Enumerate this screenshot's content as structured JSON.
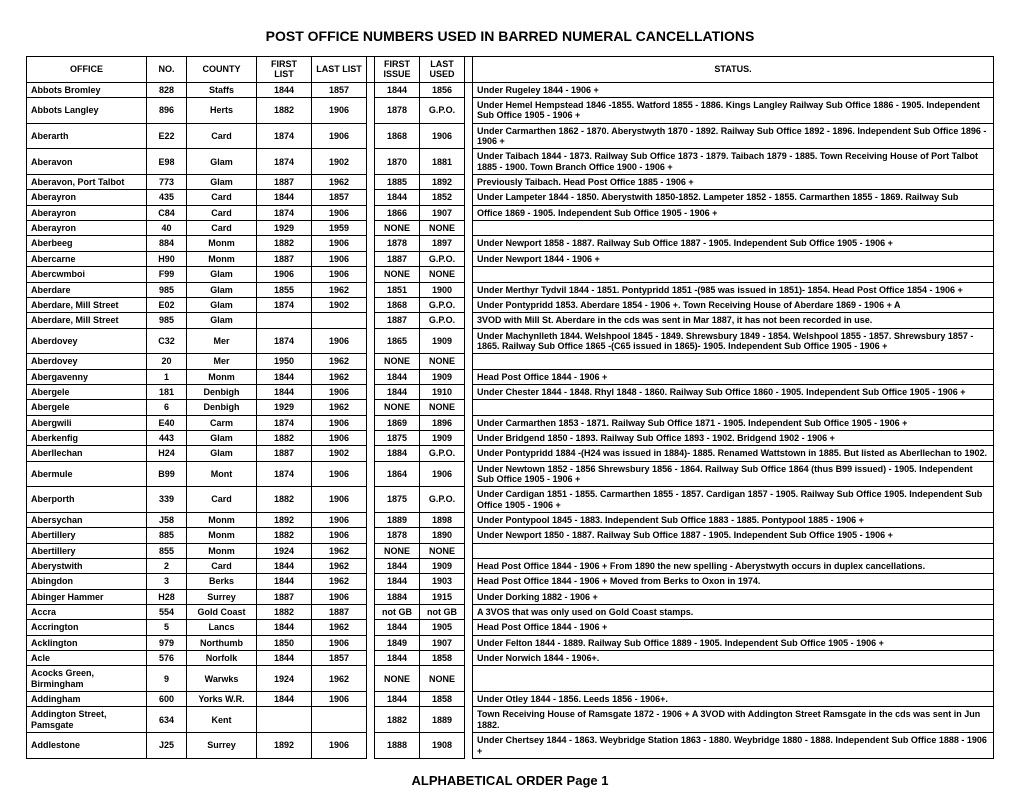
{
  "title": "POST OFFICE NUMBERS USED IN BARRED NUMERAL CANCELLATIONS",
  "footer": "ALPHABETICAL ORDER  Page 1",
  "columns": [
    "OFFICE",
    "NO.",
    "COUNTY",
    "FIRST LIST",
    "LAST LIST",
    "",
    "FIRST ISSUE",
    "LAST USED",
    "",
    "STATUS."
  ],
  "rows": [
    {
      "office": "Abbots Bromley",
      "no": "828",
      "county": "Staffs",
      "fl": "1844",
      "ll": "1857",
      "fi": "1844",
      "lu": "1856",
      "status": "Under Rugeley 1844 - 1906 +"
    },
    {
      "office": "Abbots Langley",
      "no": "896",
      "county": "Herts",
      "fl": "1882",
      "ll": "1906",
      "fi": "1878",
      "lu": "G.P.O.",
      "status": "Under Hemel Hempstead 1846 -1855.  Watford 1855 - 1886. Kings Langley Railway Sub Office 1886 - 1905.  Independent Sub Office 1905 - 1906 +"
    },
    {
      "office": "Aberarth",
      "no": "E22",
      "county": "Card",
      "fl": "1874",
      "ll": "1906",
      "fi": "1868",
      "lu": "1906",
      "status": "Under Carmarthen 1862 - 1870. Aberystwyth 1870 - 1892.  Railway Sub Office  1892 - 1896. Independent Sub Office 1896 - 1906 +"
    },
    {
      "office": "Aberavon",
      "no": "E98",
      "county": "Glam",
      "fl": "1874",
      "ll": "1902",
      "fi": "1870",
      "lu": "1881",
      "status": "Under Taibach 1844 - 1873. Railway Sub Office 1873 - 1879. Taibach 1879 - 1885. Town Receiving House of Port Talbot 1885 - 1900. Town Branch Office 1900 - 1906 +"
    },
    {
      "office": "Aberavon, Port Talbot",
      "no": "773",
      "county": "Glam",
      "fl": "1887",
      "ll": "1962",
      "fi": "1885",
      "lu": "1892",
      "status": "Previously Taibach. Head Post Office 1885 - 1906 +"
    },
    {
      "office": "Aberayron",
      "no": "435",
      "county": "Card",
      "fl": "1844",
      "ll": "1857",
      "fi": "1844",
      "lu": "1852",
      "status": "Under Lampeter 1844 - 1850. Aberystwith 1850-1852. Lampeter 1852 - 1855. Carmarthen 1855 - 1869. Railway Sub"
    },
    {
      "office": "Aberayron",
      "no": "C84",
      "county": "Card",
      "fl": "1874",
      "ll": "1906",
      "fi": "1866",
      "lu": "1907",
      "status": "Office 1869 - 1905. Independent Sub Office 1905 - 1906 +"
    },
    {
      "office": "Aberayron",
      "no": "40",
      "county": "Card",
      "fl": "1929",
      "ll": "1959",
      "fi": "NONE",
      "lu": "NONE",
      "status": ""
    },
    {
      "office": "Aberbeeg",
      "no": "884",
      "county": "Monm",
      "fl": "1882",
      "ll": "1906",
      "fi": "1878",
      "lu": "1897",
      "status": "Under Newport 1858 - 1887.  Railway Sub Office 1887 - 1905.  Independent Sub Office 1905 - 1906 +"
    },
    {
      "office": "Abercarne",
      "no": "H90",
      "county": "Monm",
      "fl": "1887",
      "ll": "1906",
      "fi": "1887",
      "lu": "G.P.O.",
      "status": "Under Newport 1844 - 1906 +"
    },
    {
      "office": "Abercwmboi",
      "no": "F99",
      "county": "Glam",
      "fl": "1906",
      "ll": "1906",
      "fi": "NONE",
      "lu": "NONE",
      "status": ""
    },
    {
      "office": "Aberdare",
      "no": "985",
      "county": "Glam",
      "fl": "1855",
      "ll": "1962",
      "fi": "1851",
      "lu": "1900",
      "status": "Under Merthyr Tydvil 1844 - 1851. Pontypridd 1851 -(985 was issued in 1851)- 1854. Head Post Office 1854 - 1906 +"
    },
    {
      "office": "Aberdare, Mill Street",
      "no": "E02",
      "county": "Glam",
      "fl": "1874",
      "ll": "1902",
      "fi": "1868",
      "lu": "G.P.O.",
      "status": "Under Pontypridd 1853. Aberdare 1854 - 1906 +. Town Receiving House of Aberdare 1869 - 1906 +                          A"
    },
    {
      "office": "Aberdare, Mill Street",
      "no": "985",
      "county": "Glam",
      "fl": "",
      "ll": "",
      "fi": "1887",
      "lu": "G.P.O.",
      "status": "3VOD with Mill St. Aberdare in the cds was sent in Mar 1887, it has not been recorded in use."
    },
    {
      "office": "Aberdovey",
      "no": "C32",
      "county": "Mer",
      "fl": "1874",
      "ll": "1906",
      "fi": "1865",
      "lu": "1909",
      "status": "Under Machynlleth 1844. Welshpool 1845 - 1849. Shrewsbury 1849 - 1854. Welshpool 1855 - 1857. Shrewsbury 1857 - 1865.  Railway Sub Office  1865 -(C65 issued in 1865)- 1905. Independent Sub Office 1905 - 1906 +"
    },
    {
      "office": "Aberdovey",
      "no": "20",
      "county": "Mer",
      "fl": "1950",
      "ll": "1962",
      "fi": "NONE",
      "lu": "NONE",
      "status": ""
    },
    {
      "office": "Abergavenny",
      "no": "1",
      "county": "Monm",
      "fl": "1844",
      "ll": "1962",
      "fi": "1844",
      "lu": "1909",
      "status": "Head Post Office 1844 - 1906 +"
    },
    {
      "office": "Abergele",
      "no": "181",
      "county": "Denbigh",
      "fl": "1844",
      "ll": "1906",
      "fi": "1844",
      "lu": "1910",
      "status": "Under Chester 1844 - 1848. Rhyl 1848 - 1860. Railway Sub Office 1860 - 1905. Independent Sub Office  1905 - 1906 +"
    },
    {
      "office": "Abergele",
      "no": "6",
      "county": "Denbigh",
      "fl": "1929",
      "ll": "1962",
      "fi": "NONE",
      "lu": "NONE",
      "status": ""
    },
    {
      "office": "Abergwili",
      "no": "E40",
      "county": "Carm",
      "fl": "1874",
      "ll": "1906",
      "fi": "1869",
      "lu": "1896",
      "status": "Under Carmarthen 1853 - 1871.  Railway Sub Office 1871 - 1905. Independent Sub Office  1905 - 1906 +"
    },
    {
      "office": "Aberkenfig",
      "no": "443",
      "county": "Glam",
      "fl": "1882",
      "ll": "1906",
      "fi": "1875",
      "lu": "1909",
      "status": "Under Bridgend 1850 - 1893. Railway Sub Office 1893 - 1902. Bridgend 1902 - 1906 +"
    },
    {
      "office": "Aberllechan",
      "no": "H24",
      "county": "Glam",
      "fl": "1887",
      "ll": "1902",
      "fi": "1884",
      "lu": "G.P.O.",
      "status": "Under Pontypridd 1884 -(H24 was issued in 1884)- 1885. Renamed  Wattstown in 1885. But listed as Aberllechan to 1902."
    },
    {
      "office": "Abermule",
      "no": "B99",
      "county": "Mont",
      "fl": "1874",
      "ll": "1906",
      "fi": "1864",
      "lu": "1906",
      "status": "Under Newtown 1852 - 1856 Shrewsbury 1856 - 1864. Railway Sub Office 1864 (thus B99 issued) - 1905. Independent Sub Office 1905 - 1906 +"
    },
    {
      "office": "Aberporth",
      "no": "339",
      "county": "Card",
      "fl": "1882",
      "ll": "1906",
      "fi": "1875",
      "lu": "G.P.O.",
      "status": "Under Cardigan 1851 - 1855. Carmarthen 1855 - 1857. Cardigan 1857 - 1905. Railway Sub Office 1905. Independent Sub Office 1905 - 1906 +"
    },
    {
      "office": "Abersychan",
      "no": "J58",
      "county": "Monm",
      "fl": "1892",
      "ll": "1906",
      "fi": "1889",
      "lu": "1898",
      "status": "Under Pontypool 1845 - 1883.  Independent Sub Office 1883 - 1885. Pontypool 1885 - 1906 +"
    },
    {
      "office": "Abertillery",
      "no": "885",
      "county": "Monm",
      "fl": "1882",
      "ll": "1906",
      "fi": "1878",
      "lu": "1890",
      "status": "Under Newport 1850 - 1887.  Railway Sub Office 1887 - 1905.  Independent Sub Office 1905 - 1906 +"
    },
    {
      "office": "Abertillery",
      "no": "855",
      "county": "Monm",
      "fl": "1924",
      "ll": "1962",
      "fi": "NONE",
      "lu": "NONE",
      "status": ""
    },
    {
      "office": "Aberystwith",
      "no": "2",
      "county": "Card",
      "fl": "1844",
      "ll": "1962",
      "fi": "1844",
      "lu": "1909",
      "status": "Head Post Office 1844 - 1906 +       From 1890 the new spelling - Aberystwyth occurs in duplex cancellations."
    },
    {
      "office": "Abingdon",
      "no": "3",
      "county": "Berks",
      "fl": "1844",
      "ll": "1962",
      "fi": "1844",
      "lu": "1903",
      "status": "Head Post Office 1844 - 1906 +   Moved from Berks to Oxon in 1974."
    },
    {
      "office": "Abinger Hammer",
      "no": "H28",
      "county": "Surrey",
      "fl": "1887",
      "ll": "1906",
      "fi": "1884",
      "lu": "1915",
      "status": "Under  Dorking 1882 - 1906 +"
    },
    {
      "office": "Accra",
      "no": "554",
      "county": "Gold Coast",
      "fl": "1882",
      "ll": "1887",
      "fi": "not GB",
      "lu": "not GB",
      "status": "A 3VOS that was only used on Gold Coast stamps."
    },
    {
      "office": "Accrington",
      "no": "5",
      "county": "Lancs",
      "fl": "1844",
      "ll": "1962",
      "fi": "1844",
      "lu": "1905",
      "status": "Head Post Office 1844 - 1906 +"
    },
    {
      "office": "Acklington",
      "no": "979",
      "county": "Northumb",
      "fl": "1850",
      "ll": "1906",
      "fi": "1849",
      "lu": "1907",
      "status": "Under Felton 1844 - 1889. Railway Sub Office 1889 - 1905.   Independent Sub Office 1905 - 1906 +"
    },
    {
      "office": "Acle",
      "no": "576",
      "county": "Norfolk",
      "fl": "1844",
      "ll": "1857",
      "fi": "1844",
      "lu": "1858",
      "status": "Under Norwich 1844 - 1906+."
    },
    {
      "office": "Acocks Green, Birmingham",
      "no": "9",
      "county": "Warwks",
      "fl": "1924",
      "ll": "1962",
      "fi": "NONE",
      "lu": "NONE",
      "status": ""
    },
    {
      "office": "Addingham",
      "no": "600",
      "county": "Yorks W.R.",
      "fl": "1844",
      "ll": "1906",
      "fi": "1844",
      "lu": "1858",
      "status": "Under Otley 1844 - 1856. Leeds 1856 - 1906+."
    },
    {
      "office": "Addington Street, Pamsgate",
      "no": "634",
      "county": "Kent",
      "fl": "",
      "ll": "",
      "fi": "1882",
      "lu": "1889",
      "status": "Town Receiving House of Ramsgate 1872 - 1906 +        A 3VOD with Addington Street Ramsgate in the cds was sent in Jun 1882."
    },
    {
      "office": "Addlestone",
      "no": "J25",
      "county": "Surrey",
      "fl": "1892",
      "ll": "1906",
      "fi": "1888",
      "lu": "1908",
      "status": "Under Chertsey 1844 - 1863. Weybridge Station 1863 - 1880. Weybridge 1880 - 1888. Independent Sub Office 1888 - 1906 +"
    }
  ]
}
